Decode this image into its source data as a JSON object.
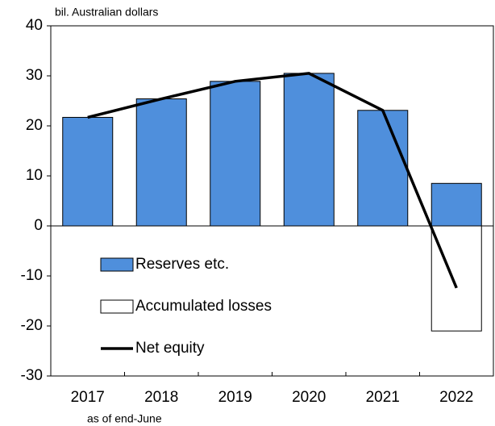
{
  "chart_data": {
    "type": "bar",
    "y_label": "bil. Australian dollars",
    "x_label": "as of end-June",
    "categories": [
      "2017",
      "2018",
      "2019",
      "2020",
      "2021",
      "2022"
    ],
    "series": [
      {
        "name": "Reserves etc.",
        "type": "bar",
        "color": "#4f8fdc",
        "values": [
          21.7,
          25.4,
          28.9,
          30.5,
          23.1,
          8.5
        ]
      },
      {
        "name": "Accumulated losses",
        "type": "bar",
        "color": "#ffffff",
        "values": [
          0,
          0,
          0,
          0,
          0,
          -21
        ]
      },
      {
        "name": "Net equity",
        "type": "line",
        "color": "#000000",
        "values": [
          21.7,
          25.4,
          28.9,
          30.5,
          23.1,
          -12.4
        ]
      }
    ],
    "ylim": [
      -30,
      40
    ],
    "yticks": [
      -30,
      -20,
      -10,
      0,
      10,
      20,
      30,
      40
    ]
  }
}
